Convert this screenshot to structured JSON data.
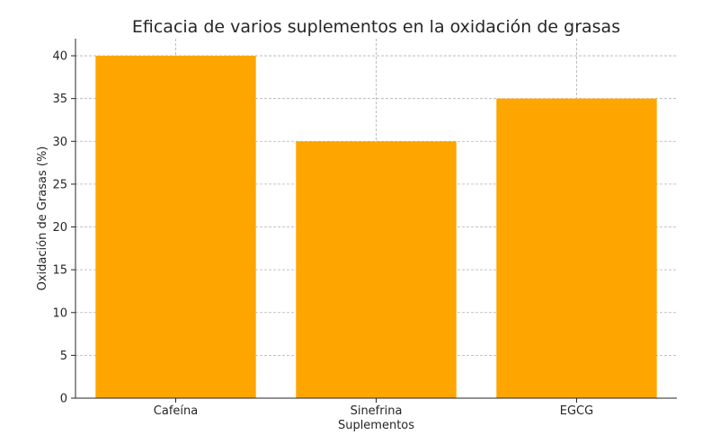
{
  "chart_data": {
    "type": "bar",
    "title": "Eficacia de varios suplementos en la oxidación de grasas",
    "xlabel": "Suplementos",
    "ylabel": "Oxidación de Grasas (%)",
    "categories": [
      "Cafeína",
      "Sinefrina",
      "EGCG"
    ],
    "values": [
      40,
      30,
      35
    ],
    "ylim": [
      0,
      42
    ],
    "yticks": [
      0,
      5,
      10,
      15,
      20,
      25,
      30,
      35,
      40
    ],
    "grid": true,
    "bar_color": "#FFA500"
  }
}
